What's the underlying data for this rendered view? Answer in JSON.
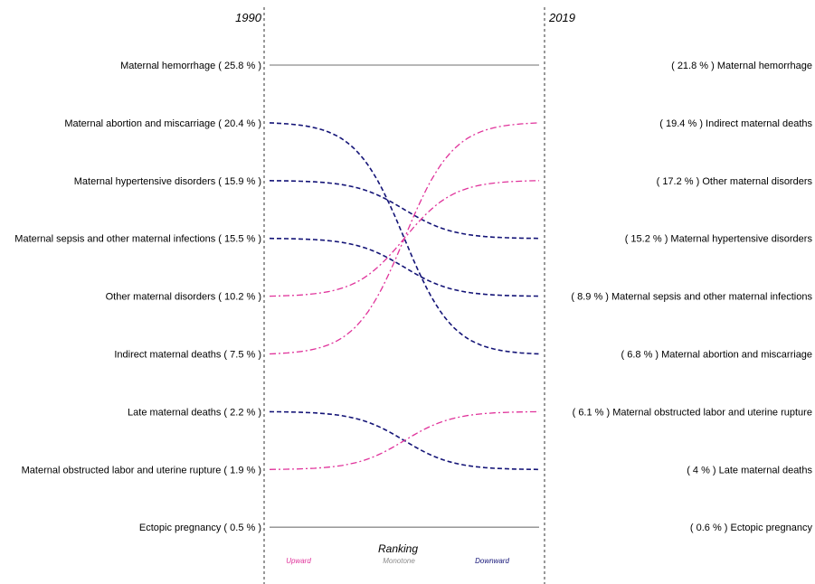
{
  "chart_data": {
    "type": "slope",
    "years": {
      "left": "1990",
      "right": "2019"
    },
    "left_labels": [
      "Maternal hemorrhage ( 25.8 % )",
      "Maternal abortion and miscarriage ( 20.4 % )",
      "Maternal hypertensive disorders ( 15.9 % )",
      "Maternal sepsis and other maternal infections ( 15.5 % )",
      "Other maternal disorders ( 10.2 % )",
      "Indirect maternal deaths ( 7.5 % )",
      "Late maternal deaths ( 2.2 % )",
      "Maternal obstructed labor and uterine rupture ( 1.9 % )",
      "Ectopic pregnancy ( 0.5 % )"
    ],
    "right_labels": [
      "( 21.8 % ) Maternal hemorrhage",
      "( 19.4 % ) Indirect maternal deaths",
      "( 17.2 % ) Other maternal disorders",
      "( 15.2 % ) Maternal hypertensive disorders",
      "( 8.9 % ) Maternal sepsis and other maternal infections",
      "( 6.8 % ) Maternal abortion and miscarriage",
      "( 6.1 % ) Maternal obstructed labor and uterine rupture",
      "( 4 % ) Late maternal deaths",
      "( 0.6 % ) Ectopic pregnancy"
    ],
    "causes": [
      {
        "cause": "Maternal hemorrhage",
        "share_1990": 25.8,
        "share_2019": 21.8,
        "rank_1990": 1,
        "rank_2019": 1,
        "trend": "monotone"
      },
      {
        "cause": "Maternal abortion and miscarriage",
        "share_1990": 20.4,
        "share_2019": 6.8,
        "rank_1990": 2,
        "rank_2019": 6,
        "trend": "downward"
      },
      {
        "cause": "Maternal hypertensive disorders",
        "share_1990": 15.9,
        "share_2019": 15.2,
        "rank_1990": 3,
        "rank_2019": 4,
        "trend": "downward"
      },
      {
        "cause": "Maternal sepsis and other maternal infections",
        "share_1990": 15.5,
        "share_2019": 8.9,
        "rank_1990": 4,
        "rank_2019": 5,
        "trend": "downward"
      },
      {
        "cause": "Other maternal disorders",
        "share_1990": 10.2,
        "share_2019": 17.2,
        "rank_1990": 5,
        "rank_2019": 3,
        "trend": "upward"
      },
      {
        "cause": "Indirect maternal deaths",
        "share_1990": 7.5,
        "share_2019": 19.4,
        "rank_1990": 6,
        "rank_2019": 2,
        "trend": "upward"
      },
      {
        "cause": "Late maternal deaths",
        "share_1990": 2.2,
        "share_2019": 4,
        "rank_1990": 7,
        "rank_2019": 8,
        "trend": "downward"
      },
      {
        "cause": "Maternal obstructed labor and uterine rupture",
        "share_1990": 1.9,
        "share_2019": 6.1,
        "rank_1990": 8,
        "rank_2019": 7,
        "trend": "upward"
      },
      {
        "cause": "Ectopic pregnancy",
        "share_1990": 0.5,
        "share_2019": 0.6,
        "rank_1990": 9,
        "rank_2019": 9,
        "trend": "monotone"
      }
    ],
    "legend": {
      "title": "Ranking",
      "placement": "bottom-center",
      "items": [
        {
          "key": "upward",
          "label": "Upward"
        },
        {
          "key": "monotone",
          "label": "Monotone"
        },
        {
          "key": "downward",
          "label": "Downward"
        }
      ]
    },
    "colors": {
      "upward": "#e0339b",
      "monotone": "#8c8c8c",
      "downward": "#141477",
      "axis": "#333333"
    }
  }
}
